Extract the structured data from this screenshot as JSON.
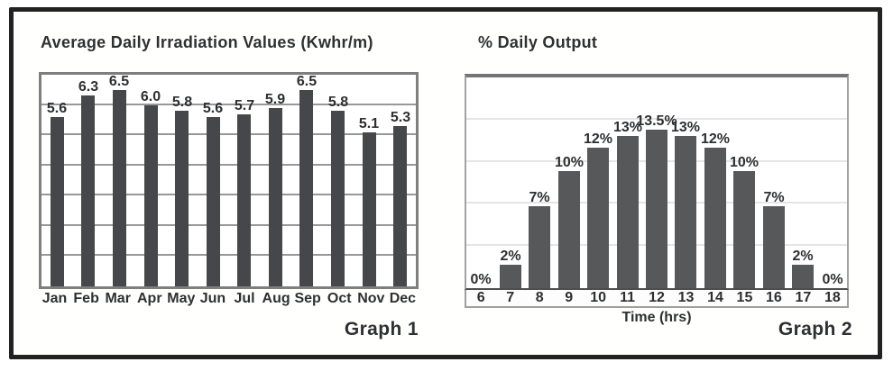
{
  "figure": {
    "frame_color": "#222222",
    "background": "#ffffff"
  },
  "chart_data": [
    {
      "type": "bar",
      "title": "Average Daily Irradiation Values (Kwhr/m)",
      "caption": "Graph 1",
      "categories": [
        "Jan",
        "Feb",
        "Mar",
        "Apr",
        "May",
        "Jun",
        "Jul",
        "Aug",
        "Sep",
        "Oct",
        "Nov",
        "Dec"
      ],
      "values": [
        5.6,
        6.3,
        6.5,
        6.0,
        5.8,
        5.6,
        5.7,
        5.9,
        6.5,
        5.8,
        5.1,
        5.3
      ],
      "value_labels": [
        "5.6",
        "6.3",
        "6.5",
        "6.0",
        "5.8",
        "5.6",
        "5.7",
        "5.9",
        "6.5",
        "5.8",
        "5.1",
        "5.3"
      ],
      "xlabel": "",
      "ylabel": "",
      "ylim": [
        0,
        7
      ],
      "ydivisions": 7,
      "grid": "on",
      "legend": "none",
      "bar_color": "#45474a",
      "gridline_style": "grid-dark"
    },
    {
      "type": "bar",
      "title": "% Daily Output",
      "caption": "Graph 2",
      "categories": [
        "6",
        "7",
        "8",
        "9",
        "10",
        "11",
        "12",
        "13",
        "14",
        "15",
        "16",
        "17",
        "18"
      ],
      "values": [
        0,
        2,
        7,
        10,
        12,
        13,
        13.5,
        13,
        12,
        10,
        7,
        2,
        0
      ],
      "value_labels": [
        "0%",
        "2%",
        "7%",
        "10%",
        "12%",
        "13%",
        "13.5%",
        "13%",
        "12%",
        "10%",
        "7%",
        "2%",
        "0%"
      ],
      "xlabel": "Time (hrs)",
      "ylabel": "",
      "ylim": [
        0,
        18
      ],
      "ydivisions": 5,
      "grid": "on",
      "legend": "none",
      "bar_color": "#56585a",
      "gridline_style": "grid-light"
    }
  ]
}
